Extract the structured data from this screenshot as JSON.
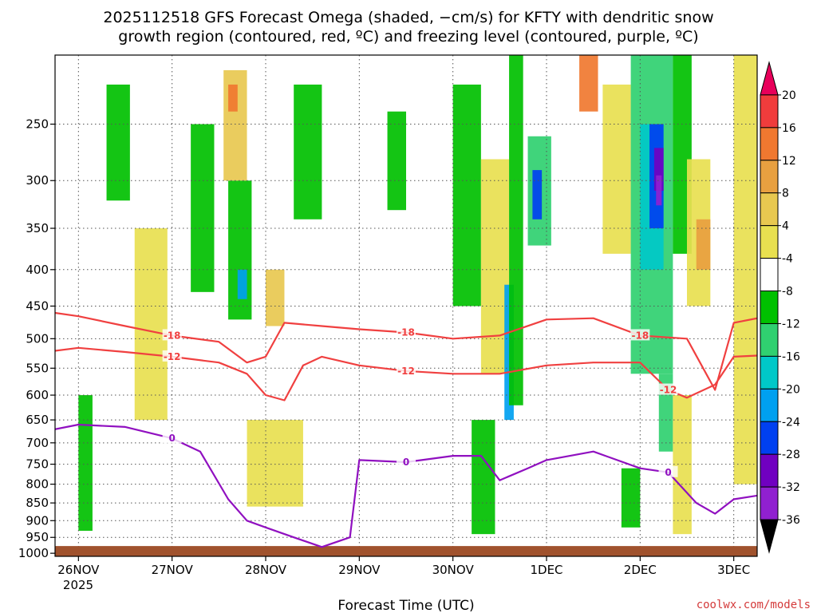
{
  "chart_data": {
    "type": "heatmap",
    "title_line1": "2025112518 GFS Forecast Omega (shaded, −cm/s) for KFTY with dendritic snow",
    "title_line2": "growth region (contoured, red, ºC) and freezing level (contoured, purple, ºC)",
    "xlabel": "Forecast Time (UTC)",
    "credit": "coolwx.com/models",
    "x_ticks": [
      "26NOV",
      "27NOV",
      "28NOV",
      "29NOV",
      "30NOV",
      "1DEC",
      "2DEC",
      "3DEC"
    ],
    "x_tick_year": "2025",
    "x_range_days": [
      -0.25,
      7.25
    ],
    "y_ticks": [
      "250",
      "300",
      "350",
      "400",
      "450",
      "500",
      "550",
      "600",
      "650",
      "700",
      "750",
      "800",
      "850",
      "900",
      "950",
      "1000"
    ],
    "y_range_hpa": [
      200,
      1010
    ],
    "colorbar_ticks": [
      "20",
      "16",
      "12",
      "8",
      "4",
      "-4",
      "-8",
      "-12",
      "-16",
      "-20",
      "-24",
      "-28",
      "-32",
      "-36"
    ],
    "colorbar_colors": [
      "#e8005a",
      "#f03c3c",
      "#f07830",
      "#e8a040",
      "#e8c850",
      "#e8e050",
      "#ffffff",
      "#00c000",
      "#30d070",
      "#00c8c8",
      "#00a0f0",
      "#0040f0",
      "#7000c0",
      "#9020d0",
      "#a0a0a0",
      "#000000"
    ],
    "shading": [
      {
        "x0": 0.0,
        "x1": 0.15,
        "p0": 600,
        "p1": 930,
        "omega": -8
      },
      {
        "x0": 0.3,
        "x1": 0.55,
        "p0": 220,
        "p1": 320,
        "omega": -8
      },
      {
        "x0": 0.6,
        "x1": 0.95,
        "p0": 350,
        "p1": 650,
        "omega": 4
      },
      {
        "x0": 1.2,
        "x1": 1.45,
        "p0": 250,
        "p1": 430,
        "omega": -8
      },
      {
        "x0": 1.6,
        "x1": 1.85,
        "p0": 300,
        "p1": 470,
        "omega": -8
      },
      {
        "x0": 1.7,
        "x1": 1.8,
        "p0": 400,
        "p1": 440,
        "omega": -20
      },
      {
        "x0": 1.55,
        "x1": 1.8,
        "p0": 210,
        "p1": 300,
        "omega": 8
      },
      {
        "x0": 1.6,
        "x1": 1.7,
        "p0": 220,
        "p1": 240,
        "omega": 16
      },
      {
        "x0": 2.0,
        "x1": 2.2,
        "p0": 400,
        "p1": 480,
        "omega": 8
      },
      {
        "x0": 1.8,
        "x1": 2.4,
        "p0": 650,
        "p1": 860,
        "omega": 4
      },
      {
        "x0": 2.3,
        "x1": 2.6,
        "p0": 220,
        "p1": 340,
        "omega": -8
      },
      {
        "x0": 3.3,
        "x1": 3.5,
        "p0": 240,
        "p1": 330,
        "omega": -8
      },
      {
        "x0": 4.0,
        "x1": 4.3,
        "p0": 220,
        "p1": 450,
        "omega": -8
      },
      {
        "x0": 4.3,
        "x1": 4.6,
        "p0": 280,
        "p1": 560,
        "omega": 4
      },
      {
        "x0": 4.55,
        "x1": 4.65,
        "p0": 420,
        "p1": 650,
        "omega": -20
      },
      {
        "x0": 4.2,
        "x1": 4.45,
        "p0": 650,
        "p1": 940,
        "omega": -8
      },
      {
        "x0": 4.6,
        "x1": 4.75,
        "p0": 200,
        "p1": 620,
        "omega": -8
      },
      {
        "x0": 4.8,
        "x1": 5.05,
        "p0": 260,
        "p1": 370,
        "omega": -12
      },
      {
        "x0": 4.85,
        "x1": 4.95,
        "p0": 290,
        "p1": 340,
        "omega": -24
      },
      {
        "x0": 5.35,
        "x1": 5.55,
        "p0": 200,
        "p1": 240,
        "omega": 16
      },
      {
        "x0": 5.6,
        "x1": 5.9,
        "p0": 220,
        "p1": 380,
        "omega": 4
      },
      {
        "x0": 5.8,
        "x1": 6.0,
        "p0": 760,
        "p1": 920,
        "omega": -8
      },
      {
        "x0": 5.9,
        "x1": 6.35,
        "p0": 200,
        "p1": 560,
        "omega": -12
      },
      {
        "x0": 6.0,
        "x1": 6.25,
        "p0": 250,
        "p1": 400,
        "omega": -16
      },
      {
        "x0": 6.1,
        "x1": 6.25,
        "p0": 250,
        "p1": 350,
        "omega": -24
      },
      {
        "x0": 6.15,
        "x1": 6.25,
        "p0": 270,
        "p1": 310,
        "omega": -28
      },
      {
        "x0": 6.17,
        "x1": 6.23,
        "p0": 295,
        "p1": 325,
        "omega": -32
      },
      {
        "x0": 6.2,
        "x1": 6.35,
        "p0": 560,
        "p1": 720,
        "omega": -12
      },
      {
        "x0": 6.35,
        "x1": 6.55,
        "p0": 200,
        "p1": 380,
        "omega": -8
      },
      {
        "x0": 6.5,
        "x1": 6.75,
        "p0": 280,
        "p1": 450,
        "omega": 4
      },
      {
        "x0": 6.6,
        "x1": 6.75,
        "p0": 340,
        "p1": 400,
        "omega": 12
      },
      {
        "x0": 6.35,
        "x1": 6.55,
        "p0": 600,
        "p1": 940,
        "omega": 4
      },
      {
        "x0": 7.0,
        "x1": 7.25,
        "p0": 200,
        "p1": 800,
        "omega": 4
      }
    ],
    "ground_hpa": 977,
    "contours": [
      {
        "name": "dgz-18C",
        "value": "-18",
        "color": "#f04040",
        "x": [
          -0.25,
          0.0,
          0.5,
          1.0,
          1.5,
          1.8,
          2.0,
          2.2,
          2.6,
          3.0,
          3.5,
          4.0,
          4.5,
          5.0,
          5.5,
          6.0,
          6.5,
          6.8,
          7.0,
          7.25
        ],
        "p": [
          460,
          465,
          480,
          495,
          505,
          540,
          530,
          475,
          480,
          485,
          490,
          500,
          495,
          470,
          468,
          495,
          500,
          590,
          475,
          468
        ]
      },
      {
        "name": "dgz-12C",
        "value": "-12",
        "color": "#f04040",
        "x": [
          -0.25,
          0.0,
          0.5,
          1.0,
          1.5,
          1.8,
          2.0,
          2.2,
          2.4,
          2.6,
          3.0,
          3.5,
          4.0,
          4.5,
          5.0,
          5.5,
          6.0,
          6.3,
          6.5,
          6.8,
          7.0,
          7.25
        ],
        "p": [
          520,
          515,
          522,
          530,
          540,
          560,
          600,
          610,
          545,
          530,
          545,
          555,
          560,
          560,
          545,
          540,
          540,
          590,
          605,
          580,
          530,
          528
        ]
      },
      {
        "name": "freezing-level-0C",
        "value": "0",
        "color": "#9010c0",
        "x": [
          -0.25,
          0.0,
          0.5,
          1.0,
          1.3,
          1.6,
          1.8,
          2.0,
          2.3,
          2.6,
          2.9,
          3.0,
          3.5,
          4.0,
          4.3,
          4.5,
          4.8,
          5.0,
          5.5,
          6.0,
          6.3,
          6.6,
          6.8,
          7.0,
          7.25
        ],
        "p": [
          670,
          660,
          665,
          690,
          720,
          840,
          900,
          920,
          950,
          980,
          950,
          740,
          745,
          730,
          730,
          790,
          760,
          740,
          720,
          760,
          770,
          850,
          880,
          840,
          830
        ]
      }
    ]
  }
}
